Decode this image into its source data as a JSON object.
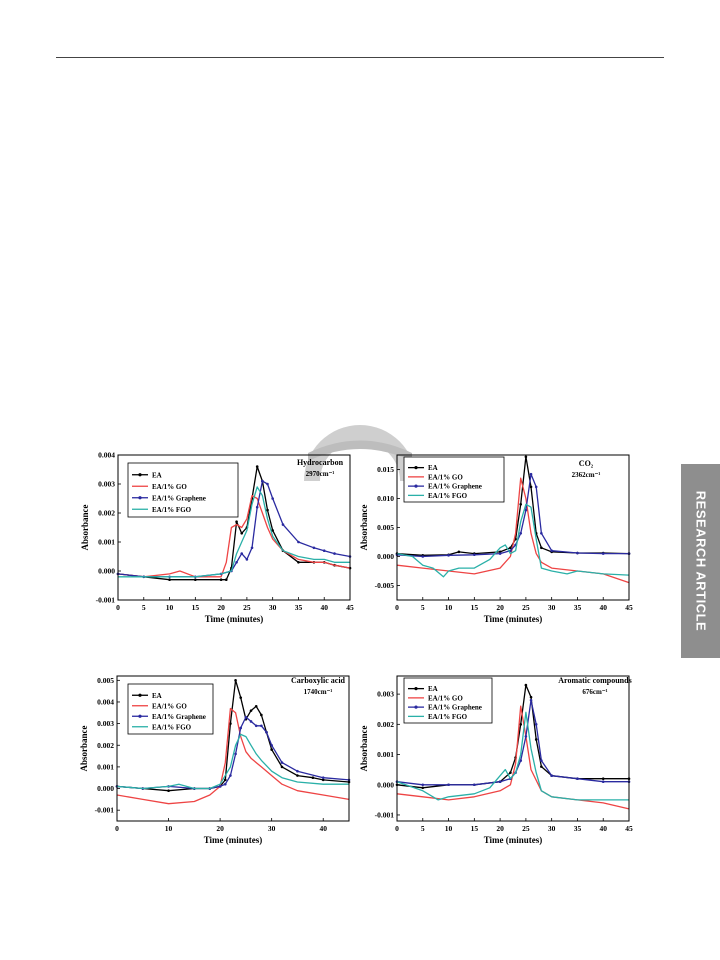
{
  "side_tab": {
    "label": "RESEARCH ARTICLE"
  },
  "legend_entries": [
    "EA",
    "EA/1% GO",
    "EA/1% Graphene",
    "EA/1% FGO"
  ],
  "colors": {
    "EA": "#000000",
    "EA/1% GO": "#ee4444",
    "EA/1% Graphene": "#2a2aa0",
    "EA/1% FGO": "#2ab0a8"
  },
  "chart_data": [
    {
      "type": "line",
      "title": "Hydrocarbon",
      "subtitle": "2970cm⁻¹",
      "xlabel": "Time (minutes)",
      "ylabel": "Absorbance",
      "xlim": [
        0,
        45
      ],
      "ylim": [
        -0.001,
        0.004
      ],
      "xticks": [
        0,
        5,
        10,
        15,
        20,
        25,
        30,
        35,
        40,
        45
      ],
      "yticks": [
        -0.001,
        0.0,
        0.001,
        0.002,
        0.003,
        0.004
      ],
      "ytick_labels": [
        "-0.001",
        "0.000",
        "0.001",
        "0.002",
        "0.003",
        "0.004"
      ],
      "legend_position": "top-left",
      "series": [
        {
          "name": "EA",
          "x": [
            0,
            5,
            10,
            15,
            20,
            21,
            22,
            23,
            24,
            25,
            26,
            27,
            28,
            29,
            30,
            32,
            35,
            38,
            40,
            42,
            45
          ],
          "y": [
            -0.0001,
            -0.0002,
            -0.0003,
            -0.0003,
            -0.0003,
            -0.0003,
            0.0001,
            0.0017,
            0.0013,
            0.0015,
            0.0025,
            0.0036,
            0.0031,
            0.0021,
            0.0014,
            0.0007,
            0.0003,
            0.0003,
            0.0003,
            0.0002,
            0.0001
          ]
        },
        {
          "name": "EA/1% GO",
          "x": [
            0,
            5,
            10,
            12,
            15,
            20,
            21,
            22,
            23,
            24,
            25,
            26,
            27,
            28,
            29,
            30,
            32,
            35,
            38,
            40,
            42,
            45
          ],
          "y": [
            -0.0001,
            -0.0002,
            -0.0001,
            0.0,
            -0.0002,
            -0.0002,
            0.0003,
            0.0015,
            0.0016,
            0.0015,
            0.0018,
            0.0026,
            0.0025,
            0.002,
            0.0015,
            0.0011,
            0.0007,
            0.0004,
            0.0003,
            0.0003,
            0.0002,
            0.0001
          ]
        },
        {
          "name": "EA/1% Graphene",
          "x": [
            0,
            5,
            10,
            15,
            20,
            22,
            23,
            24,
            25,
            26,
            27,
            28,
            29,
            30,
            32,
            35,
            38,
            40,
            42,
            45
          ],
          "y": [
            -0.0001,
            -0.0002,
            -0.0002,
            -0.0002,
            -0.0001,
            0.0,
            0.0003,
            0.0006,
            0.0004,
            0.0008,
            0.0022,
            0.0031,
            0.003,
            0.0025,
            0.0016,
            0.001,
            0.0008,
            0.0007,
            0.0006,
            0.0005
          ]
        },
        {
          "name": "EA/1% FGO",
          "x": [
            0,
            5,
            10,
            15,
            20,
            22,
            23,
            24,
            25,
            26,
            27,
            28,
            29,
            30,
            32,
            35,
            38,
            40,
            42,
            45
          ],
          "y": [
            -0.0002,
            -0.0002,
            -0.0002,
            -0.0002,
            -0.0001,
            0.0,
            0.0006,
            0.001,
            0.0014,
            0.0023,
            0.0029,
            0.0026,
            0.0018,
            0.0012,
            0.0007,
            0.0005,
            0.0004,
            0.0004,
            0.0003,
            0.0003
          ]
        }
      ]
    },
    {
      "type": "line",
      "title": "CO₂",
      "subtitle": "2362cm⁻¹",
      "xlabel": "Time (minutes)",
      "ylabel": "Absorbance",
      "xlim": [
        0,
        45
      ],
      "ylim": [
        -0.0075,
        0.0175
      ],
      "xticks": [
        0,
        5,
        10,
        15,
        20,
        25,
        30,
        35,
        40,
        45
      ],
      "yticks": [
        -0.005,
        0.0,
        0.005,
        0.01,
        0.015
      ],
      "ytick_labels": [
        "-0.005",
        "0.000",
        "0.005",
        "0.010",
        "0.015"
      ],
      "legend_position": "top-left",
      "series": [
        {
          "name": "EA",
          "x": [
            0,
            5,
            10,
            12,
            15,
            20,
            22,
            23,
            24,
            25,
            26,
            27,
            28,
            30,
            35,
            40,
            45
          ],
          "y": [
            0.0005,
            0.0002,
            0.0003,
            0.0008,
            0.0005,
            0.0008,
            0.0015,
            0.003,
            0.009,
            0.0172,
            0.012,
            0.004,
            0.0015,
            0.0008,
            0.0006,
            0.0006,
            0.0005
          ]
        },
        {
          "name": "EA/1% GO",
          "x": [
            0,
            5,
            10,
            15,
            20,
            22,
            23,
            24,
            25,
            26,
            27,
            28,
            30,
            35,
            40,
            45
          ],
          "y": [
            -0.0015,
            -0.002,
            -0.0025,
            -0.003,
            -0.002,
            0.0,
            0.004,
            0.0135,
            0.01,
            0.004,
            0.0005,
            -0.001,
            -0.002,
            -0.0025,
            -0.003,
            -0.0045
          ]
        },
        {
          "name": "EA/1% Graphene",
          "x": [
            0,
            5,
            10,
            15,
            20,
            22,
            23,
            24,
            25,
            26,
            27,
            28,
            30,
            35,
            40,
            45
          ],
          "y": [
            0.0003,
            0.0,
            0.0002,
            0.0003,
            0.0005,
            0.001,
            0.002,
            0.004,
            0.008,
            0.0142,
            0.012,
            0.004,
            0.001,
            0.0006,
            0.0005,
            0.0005
          ]
        },
        {
          "name": "EA/1% FGO",
          "x": [
            0,
            3,
            5,
            7,
            9,
            10,
            12,
            15,
            18,
            20,
            21,
            22,
            23,
            24,
            25,
            26,
            27,
            28,
            30,
            33,
            35,
            40,
            45
          ],
          "y": [
            0.0005,
            0.0,
            -0.0015,
            -0.002,
            -0.0035,
            -0.0025,
            -0.002,
            -0.002,
            -0.0005,
            0.0015,
            0.002,
            0.0005,
            0.001,
            0.006,
            0.009,
            0.0085,
            0.003,
            -0.002,
            -0.0025,
            -0.003,
            -0.0025,
            -0.003,
            -0.0032
          ]
        }
      ]
    },
    {
      "type": "line",
      "title": "Carboxylic acid",
      "subtitle": "1740cm⁻¹",
      "xlabel": "Time (minutes)",
      "ylabel": "Absorbance",
      "xlim": [
        0,
        45
      ],
      "ylim": [
        -0.0015,
        0.0052
      ],
      "xticks": [
        0,
        10,
        20,
        30,
        40
      ],
      "yticks": [
        -0.001,
        0.0,
        0.001,
        0.002,
        0.003,
        0.004,
        0.005
      ],
      "ytick_labels": [
        "-0.001",
        "0.000",
        "0.001",
        "0.002",
        "0.003",
        "0.004",
        "0.005"
      ],
      "legend_position": "top-left",
      "series": [
        {
          "name": "EA",
          "x": [
            0,
            5,
            10,
            15,
            18,
            20,
            21,
            22,
            23,
            24,
            25,
            26,
            27,
            28,
            29,
            30,
            32,
            35,
            38,
            40,
            45
          ],
          "y": [
            0.0001,
            0.0,
            -0.0001,
            0.0,
            0.0,
            0.0001,
            0.0004,
            0.003,
            0.005,
            0.0042,
            0.0032,
            0.0036,
            0.0038,
            0.0034,
            0.0026,
            0.0018,
            0.001,
            0.0006,
            0.0005,
            0.0004,
            0.0003
          ]
        },
        {
          "name": "EA/1% GO",
          "x": [
            0,
            5,
            10,
            15,
            18,
            20,
            21,
            22,
            23,
            24,
            25,
            26,
            27,
            28,
            30,
            32,
            35,
            40,
            45
          ],
          "y": [
            -0.0003,
            -0.0005,
            -0.0007,
            -0.0006,
            -0.0003,
            0.0001,
            0.0012,
            0.0037,
            0.0035,
            0.0024,
            0.0017,
            0.0014,
            0.0012,
            0.001,
            0.0006,
            0.0002,
            -0.0001,
            -0.0003,
            -0.0005
          ]
        },
        {
          "name": "EA/1% Graphene",
          "x": [
            0,
            5,
            10,
            15,
            18,
            20,
            21,
            22,
            23,
            24,
            25,
            26,
            27,
            28,
            29,
            30,
            32,
            35,
            40,
            45
          ],
          "y": [
            0.0001,
            0.0,
            0.0001,
            0.0,
            0.0,
            0.0001,
            0.0002,
            0.0006,
            0.0016,
            0.0028,
            0.0033,
            0.0031,
            0.0029,
            0.0029,
            0.0026,
            0.002,
            0.0012,
            0.0008,
            0.0005,
            0.0004
          ]
        },
        {
          "name": "EA/1% FGO",
          "x": [
            0,
            5,
            10,
            12,
            15,
            18,
            20,
            22,
            23,
            24,
            25,
            26,
            27,
            28,
            30,
            32,
            35,
            40,
            45
          ],
          "y": [
            0.0001,
            0.0,
            0.0001,
            0.0002,
            0.0,
            0.0,
            0.0002,
            0.001,
            0.002,
            0.0025,
            0.0024,
            0.002,
            0.0016,
            0.0013,
            0.0008,
            0.0005,
            0.0003,
            0.0002,
            0.0002
          ]
        }
      ]
    },
    {
      "type": "line",
      "title": "Aromatic compounds",
      "subtitle": "676cm⁻¹",
      "xlabel": "Time (minutes)",
      "ylabel": "Absorbance",
      "xlim": [
        0,
        45
      ],
      "ylim": [
        -0.0012,
        0.0036
      ],
      "xticks": [
        0,
        5,
        10,
        15,
        20,
        25,
        30,
        35,
        40,
        45
      ],
      "yticks": [
        -0.001,
        0.0,
        0.001,
        0.002,
        0.003
      ],
      "ytick_labels": [
        "-0.001",
        "0.000",
        "0.001",
        "0.002",
        "0.003"
      ],
      "legend_position": "top-left",
      "series": [
        {
          "name": "EA",
          "x": [
            0,
            5,
            10,
            15,
            20,
            22,
            23,
            24,
            25,
            26,
            27,
            28,
            30,
            35,
            40,
            45
          ],
          "y": [
            0.0,
            -0.0001,
            0.0,
            0.0,
            0.0001,
            0.0004,
            0.0009,
            0.002,
            0.0033,
            0.0029,
            0.0015,
            0.0006,
            0.0003,
            0.0002,
            0.0002,
            0.0002
          ]
        },
        {
          "name": "EA/1% GO",
          "x": [
            0,
            5,
            10,
            15,
            20,
            22,
            23,
            24,
            25,
            26,
            28,
            30,
            35,
            40,
            45
          ],
          "y": [
            -0.0003,
            -0.0004,
            -0.0005,
            -0.0004,
            -0.0002,
            0.0,
            0.0007,
            0.0026,
            0.0016,
            0.0005,
            -0.0002,
            -0.0004,
            -0.0005,
            -0.0006,
            -0.0008
          ]
        },
        {
          "name": "EA/1% Graphene",
          "x": [
            0,
            5,
            10,
            15,
            20,
            22,
            23,
            24,
            25,
            26,
            27,
            28,
            30,
            35,
            40,
            45
          ],
          "y": [
            0.0001,
            0.0,
            0.0,
            0.0,
            0.0001,
            0.0002,
            0.0004,
            0.0008,
            0.0016,
            0.0028,
            0.002,
            0.0008,
            0.0003,
            0.0002,
            0.0001,
            0.0001
          ]
        },
        {
          "name": "EA/1% FGO",
          "x": [
            0,
            5,
            8,
            10,
            15,
            18,
            20,
            21,
            22,
            23,
            24,
            25,
            26,
            27,
            28,
            30,
            35,
            40,
            45
          ],
          "y": [
            0.0001,
            -0.0002,
            -0.0005,
            -0.0004,
            -0.0003,
            -0.0001,
            0.0003,
            0.0005,
            0.0002,
            0.0004,
            0.001,
            0.0024,
            0.0012,
            0.0004,
            -0.0002,
            -0.0004,
            -0.0005,
            -0.0005,
            -0.0005
          ]
        }
      ]
    }
  ]
}
